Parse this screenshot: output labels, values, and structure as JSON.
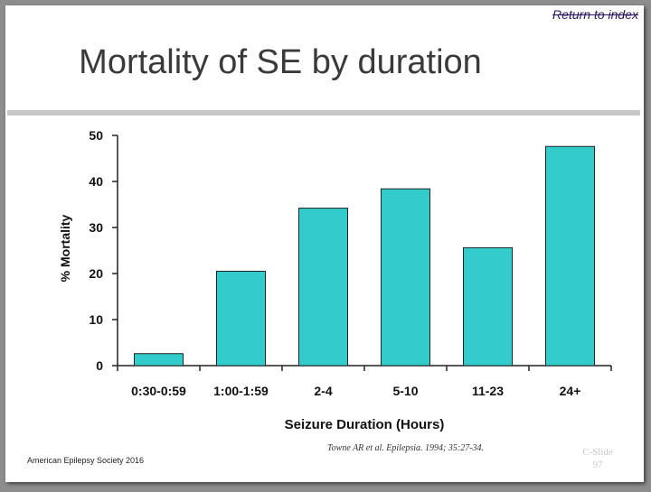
{
  "header": {
    "return_link": "Return to index"
  },
  "title": "Mortality of SE by duration",
  "footer": {
    "org": "American Epilepsy Society 2016",
    "citation": "Towne AR et al. Epilepsia. 1994; 35:27-34.",
    "slide_label": "C-Slide",
    "slide_number": "97"
  },
  "colors": {
    "bar": "#33CCCC",
    "bar_stroke": "#222222"
  },
  "chart_data": {
    "type": "bar",
    "title": "",
    "xlabel": "Seizure Duration (Hours)",
    "ylabel": "% Mortality",
    "ylim": [
      0,
      50
    ],
    "yticks": [
      0,
      10,
      20,
      30,
      40,
      50
    ],
    "grid": false,
    "categories": [
      "0:30-0:59",
      "1:00-1:59",
      "2-4",
      "5-10",
      "11-23",
      "24+"
    ],
    "values": [
      2.6,
      20.5,
      34.2,
      38.4,
      25.6,
      47.6
    ]
  }
}
